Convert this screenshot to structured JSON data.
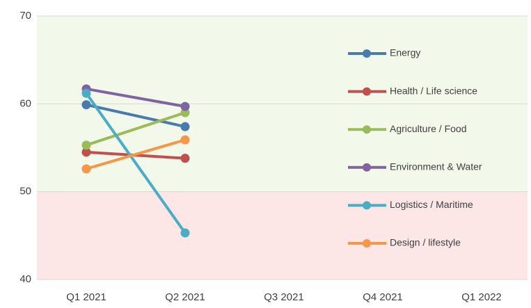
{
  "chart_data": {
    "type": "line",
    "categories": [
      "Q1 2021",
      "Q2 2021",
      "Q3 2021",
      "Q4 2021",
      "Q1 2022"
    ],
    "series": [
      {
        "name": "Energy",
        "color": "#4a7bb0",
        "values": [
          59.9,
          57.4,
          null,
          null,
          null
        ]
      },
      {
        "name": "Health / Life science",
        "color": "#c0504d",
        "values": [
          54.5,
          53.8,
          null,
          null,
          null
        ]
      },
      {
        "name": "Agriculture / Food",
        "color": "#9bbb59",
        "values": [
          55.3,
          59.0,
          null,
          null,
          null
        ]
      },
      {
        "name": "Environment & Water",
        "color": "#8064a2",
        "values": [
          61.7,
          59.7,
          null,
          null,
          null
        ]
      },
      {
        "name": "Logistics / Maritime",
        "color": "#4bacc6",
        "values": [
          61.2,
          45.3,
          null,
          null,
          null
        ]
      },
      {
        "name": "Design / lifestyle",
        "color": "#f79646",
        "values": [
          52.6,
          55.9,
          null,
          null,
          null
        ]
      }
    ],
    "ylim": [
      40,
      70
    ],
    "yticks": [
      40,
      50,
      60,
      70
    ],
    "grid": true,
    "legend": "right",
    "bands": [
      {
        "from": 50,
        "to": 70,
        "color": "#f2f8ea"
      },
      {
        "from": 40,
        "to": 50,
        "color": "#fde6e6"
      }
    ]
  }
}
